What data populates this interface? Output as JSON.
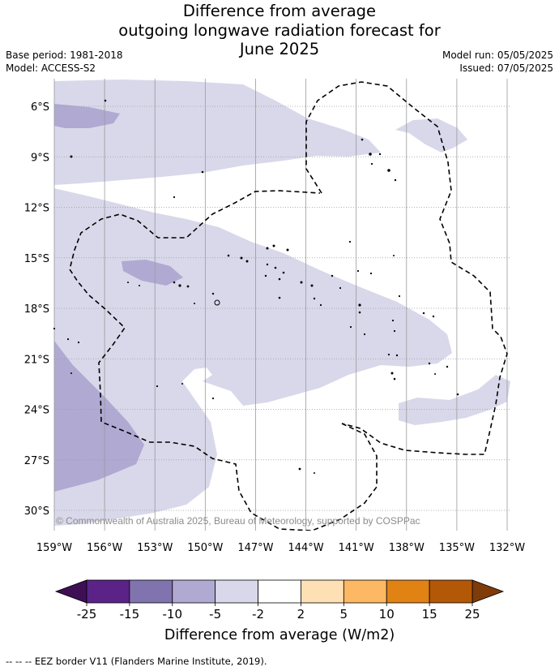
{
  "title": {
    "line1": "Difference from average",
    "line2": "outgoing longwave radiation forecast for",
    "line3": "June 2025"
  },
  "meta": {
    "base_period": "Base period: 1981-2018",
    "model": "Model: ACCESS-S2",
    "model_run": "Model run: 05/05/2025",
    "issued": "Issued: 07/05/2025"
  },
  "map": {
    "lon_ticks": [
      "159°W",
      "156°W",
      "153°W",
      "150°W",
      "147°W",
      "144°W",
      "141°W",
      "138°W",
      "135°W",
      "132°W"
    ],
    "lat_ticks": [
      "6°S",
      "9°S",
      "12°S",
      "15°S",
      "18°S",
      "21°S",
      "24°S",
      "27°S",
      "30°S"
    ],
    "lon_range": [
      -159,
      -132
    ],
    "lat_range": [
      -31.3,
      -4.2
    ],
    "copyright": "© Commonwealth of Australia 2025, Bureau of Meteorology, supported by COSPPac"
  },
  "colorbar": {
    "ticks": [
      "-25",
      "-15",
      "-10",
      "-5",
      "-2",
      "2",
      "5",
      "10",
      "15",
      "25"
    ],
    "label": "Difference from average (W/m2)",
    "colors": {
      "under": "#3f0f56",
      "bins": [
        "#5b2388",
        "#8173ad",
        "#b0a9d2",
        "#d8d8ea",
        "#ffffff",
        "#fde0b4",
        "#fdb863",
        "#e08214",
        "#b35806"
      ],
      "over": "#7f3b08"
    }
  },
  "eez_note": "--  --  -- EEZ border V11 (Flanders Marine Institute, 2019)."
}
